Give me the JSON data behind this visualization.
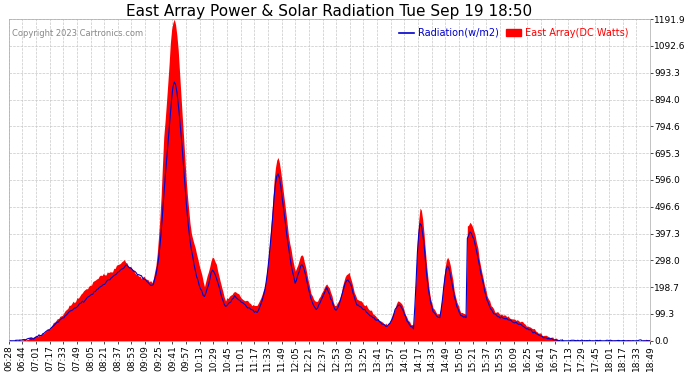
{
  "title": "East Array Power & Solar Radiation Tue Sep 19 18:50",
  "copyright": "Copyright 2023 Cartronics.com",
  "legend_radiation": "Radiation(w/m2)",
  "legend_array": "East Array(DC Watts)",
  "ylabel_right_ticks": [
    0.0,
    99.3,
    198.7,
    298.0,
    397.3,
    496.6,
    596.0,
    695.3,
    794.6,
    894.0,
    993.3,
    1092.6,
    1191.9
  ],
  "ylim": [
    0,
    1191.9
  ],
  "bg_color": "#ffffff",
  "grid_color": "#c8c8c8",
  "radiation_color": "#0000cc",
  "array_color": "#ff0000",
  "title_fontsize": 11,
  "tick_fontsize": 6.5,
  "x_tick_labels": [
    "06:28",
    "06:44",
    "07:01",
    "07:17",
    "07:33",
    "07:49",
    "08:05",
    "08:21",
    "08:37",
    "08:53",
    "09:09",
    "09:25",
    "09:41",
    "09:57",
    "10:13",
    "10:29",
    "10:45",
    "11:01",
    "11:17",
    "11:33",
    "11:49",
    "12:05",
    "12:21",
    "12:37",
    "12:53",
    "13:09",
    "13:25",
    "13:41",
    "13:57",
    "14:01",
    "14:17",
    "14:33",
    "14:49",
    "15:05",
    "15:21",
    "15:37",
    "15:53",
    "16:09",
    "16:25",
    "16:41",
    "16:57",
    "17:13",
    "17:29",
    "17:45",
    "18:01",
    "18:17",
    "18:33",
    "18:49"
  ],
  "n_points": 580,
  "east_array": [
    0,
    0,
    0,
    0,
    0,
    2,
    2,
    2,
    3,
    3,
    4,
    4,
    5,
    5,
    6,
    7,
    8,
    9,
    10,
    12,
    14,
    16,
    18,
    20,
    22,
    25,
    28,
    32,
    36,
    40,
    45,
    50,
    55,
    60,
    65,
    70,
    75,
    80,
    85,
    90,
    95,
    100,
    105,
    110,
    115,
    120,
    125,
    130,
    135,
    140,
    145,
    150,
    155,
    160,
    165,
    170,
    175,
    180,
    185,
    190,
    195,
    200,
    205,
    210,
    215,
    220,
    225,
    230,
    235,
    240,
    242,
    244,
    246,
    248,
    250,
    252,
    254,
    256,
    258,
    260,
    265,
    270,
    275,
    280,
    285,
    290,
    295,
    300,
    295,
    290,
    285,
    280,
    275,
    270,
    265,
    260,
    255,
    250,
    245,
    240,
    238,
    236,
    234,
    232,
    230,
    228,
    226,
    224,
    222,
    220,
    230,
    250,
    280,
    320,
    380,
    450,
    540,
    650,
    750,
    820,
    880,
    950,
    1020,
    1100,
    1150,
    1180,
    1191,
    1170,
    1130,
    1080,
    1000,
    920,
    840,
    760,
    680,
    600,
    540,
    480,
    430,
    400,
    380,
    360,
    340,
    320,
    300,
    280,
    260,
    240,
    220,
    200,
    220,
    240,
    260,
    280,
    300,
    310,
    305,
    295,
    280,
    260,
    240,
    220,
    200,
    180,
    160,
    150,
    155,
    160,
    165,
    170,
    175,
    180,
    185,
    180,
    175,
    170,
    165,
    160,
    155,
    150,
    148,
    146,
    144,
    142,
    140,
    138,
    136,
    134,
    132,
    130,
    140,
    150,
    160,
    175,
    190,
    210,
    240,
    280,
    330,
    390,
    450,
    520,
    590,
    640,
    670,
    680,
    660,
    630,
    590,
    550,
    510,
    470,
    430,
    390,
    360,
    330,
    300,
    280,
    260,
    270,
    285,
    300,
    315,
    320,
    310,
    295,
    275,
    250,
    225,
    200,
    180,
    165,
    155,
    148,
    145,
    148,
    155,
    165,
    175,
    185,
    195,
    205,
    210,
    205,
    195,
    180,
    165,
    150,
    135,
    130,
    135,
    145,
    160,
    180,
    200,
    220,
    235,
    245,
    248,
    245,
    235,
    220,
    200,
    180,
    165,
    155,
    150,
    148,
    145,
    142,
    138,
    134,
    130,
    125,
    120,
    115,
    110,
    105,
    100,
    95,
    90,
    85,
    80,
    75,
    72,
    68,
    65,
    62,
    60,
    65,
    72,
    82,
    95,
    110,
    125,
    135,
    142,
    145,
    142,
    135,
    125,
    112,
    98,
    85,
    75,
    68,
    62,
    58,
    55,
    140,
    250,
    370,
    450,
    490,
    480,
    450,
    400,
    340,
    280,
    230,
    190,
    160,
    140,
    125,
    115,
    108,
    104,
    102,
    100,
    130,
    170,
    220,
    270,
    300,
    310,
    300,
    280,
    250,
    220,
    190,
    165,
    145,
    130,
    118,
    110,
    105,
    102,
    100,
    98,
    420,
    430,
    440,
    435,
    425,
    410,
    390,
    365,
    338,
    310,
    282,
    255,
    230,
    208,
    188,
    170,
    155,
    143,
    133,
    125,
    118,
    112,
    108,
    105,
    102,
    100,
    98,
    96,
    95,
    94,
    92,
    90,
    88,
    86,
    84,
    82,
    80,
    78,
    76,
    74,
    72,
    70,
    68,
    65,
    62,
    59,
    56,
    53,
    50,
    47,
    44,
    41,
    38,
    35,
    32,
    29,
    26,
    24,
    22,
    20,
    18,
    16,
    14,
    13,
    12,
    11,
    10,
    9,
    8,
    7,
    6,
    5,
    4,
    3,
    2,
    1,
    0,
    0,
    0,
    0,
    0,
    0,
    0,
    0,
    0,
    0,
    0,
    0,
    0,
    0,
    0,
    0,
    0,
    0,
    0,
    0,
    0,
    0,
    0,
    0,
    0,
    0,
    0,
    0,
    0,
    0,
    0,
    0,
    0,
    0,
    0,
    0,
    0,
    0,
    0,
    0,
    0,
    0,
    0,
    0,
    0,
    0,
    0,
    0,
    0,
    0,
    0,
    0,
    0,
    0,
    0,
    0,
    0,
    0,
    0,
    0,
    0,
    0,
    0,
    0
  ],
  "radiation": [
    0,
    0,
    0,
    0,
    0,
    1,
    1,
    1,
    2,
    2,
    3,
    3,
    4,
    4,
    5,
    6,
    7,
    8,
    9,
    10,
    12,
    14,
    16,
    18,
    20,
    22,
    25,
    28,
    32,
    36,
    40,
    44,
    48,
    52,
    56,
    60,
    64,
    68,
    72,
    76,
    80,
    84,
    88,
    92,
    96,
    100,
    104,
    108,
    112,
    116,
    120,
    124,
    128,
    132,
    136,
    140,
    144,
    148,
    152,
    156,
    160,
    164,
    168,
    172,
    176,
    180,
    184,
    188,
    192,
    196,
    200,
    204,
    208,
    212,
    216,
    220,
    224,
    228,
    232,
    236,
    240,
    244,
    248,
    252,
    256,
    260,
    264,
    268,
    272,
    276,
    280,
    276,
    272,
    268,
    264,
    260,
    256,
    252,
    248,
    244,
    240,
    236,
    232,
    228,
    224,
    220,
    216,
    212,
    208,
    204,
    210,
    225,
    245,
    270,
    302,
    345,
    400,
    465,
    535,
    600,
    660,
    720,
    780,
    840,
    900,
    940,
    960,
    950,
    920,
    880,
    830,
    775,
    715,
    650,
    585,
    520,
    465,
    415,
    372,
    338,
    310,
    285,
    262,
    242,
    224,
    208,
    194,
    182,
    172,
    164,
    175,
    190,
    208,
    228,
    248,
    262,
    258,
    248,
    235,
    218,
    200,
    182,
    165,
    150,
    136,
    126,
    130,
    136,
    142,
    148,
    154,
    160,
    166,
    162,
    157,
    152,
    148,
    143,
    138,
    134,
    130,
    127,
    124,
    121,
    118,
    115,
    112,
    109,
    106,
    103,
    112,
    123,
    136,
    152,
    170,
    192,
    220,
    256,
    300,
    352,
    408,
    470,
    534,
    582,
    610,
    622,
    602,
    572,
    534,
    495,
    456,
    418,
    380,
    343,
    310,
    280,
    254,
    232,
    214,
    224,
    240,
    258,
    276,
    284,
    276,
    261,
    242,
    220,
    197,
    175,
    156,
    141,
    130,
    122,
    118,
    122,
    130,
    141,
    152,
    163,
    174,
    185,
    191,
    185,
    174,
    160,
    146,
    132,
    119,
    114,
    119,
    130,
    144,
    161,
    178,
    196,
    210,
    220,
    224,
    220,
    210,
    196,
    178,
    160,
    146,
    136,
    130,
    127,
    124,
    121,
    118,
    114,
    110,
    106,
    102,
    98,
    94,
    90,
    86,
    82,
    78,
    74,
    71,
    68,
    65,
    62,
    59,
    56,
    54,
    58,
    65,
    74,
    86,
    100,
    114,
    124,
    131,
    134,
    131,
    124,
    114,
    102,
    88,
    76,
    66,
    59,
    54,
    50,
    47,
    124,
    220,
    328,
    400,
    436,
    428,
    400,
    356,
    302,
    248,
    204,
    168,
    142,
    124,
    110,
    100,
    94,
    90,
    88,
    86,
    116,
    152,
    196,
    240,
    268,
    276,
    268,
    248,
    222,
    194,
    168,
    146,
    128,
    115,
    104,
    96,
    91,
    88,
    86,
    84,
    380,
    392,
    404,
    398,
    388,
    374,
    356,
    334,
    310,
    284,
    258,
    234,
    210,
    188,
    170,
    154,
    140,
    128,
    118,
    110,
    104,
    99,
    95,
    92,
    90,
    88,
    86,
    84,
    83,
    82,
    80,
    78,
    76,
    74,
    72,
    70,
    68,
    66,
    64,
    62,
    60,
    58,
    56,
    54,
    51,
    48,
    45,
    42,
    39,
    36,
    33,
    30,
    27,
    24,
    21,
    19,
    17,
    15,
    13,
    11,
    9,
    8,
    7,
    6,
    5,
    5,
    4,
    4,
    3,
    3,
    2,
    2,
    2,
    1,
    1,
    1,
    0,
    0,
    0,
    0,
    0,
    0,
    0,
    0,
    0,
    0,
    0,
    0,
    0,
    0,
    0,
    0,
    0,
    0,
    0,
    0,
    0,
    0,
    0,
    0,
    0,
    0,
    0,
    0,
    0,
    0,
    0,
    0,
    0,
    0,
    0,
    0,
    0,
    0,
    0,
    0,
    0,
    0,
    0,
    0,
    0,
    0,
    0,
    0,
    0,
    0,
    0,
    0,
    0,
    0,
    0,
    0,
    0,
    0,
    0,
    0,
    0,
    0,
    0,
    0
  ]
}
